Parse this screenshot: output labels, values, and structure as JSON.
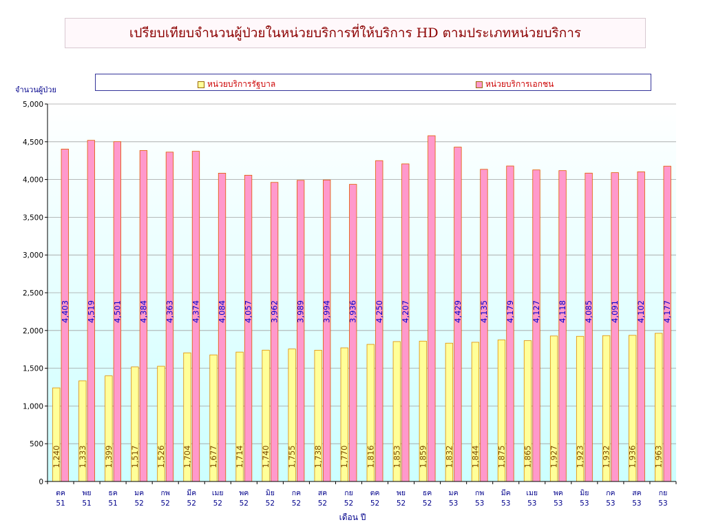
{
  "chart_data": {
    "type": "bar",
    "title": "เปรียบเทียบจำนวนผู้ป่วยในหน่วยบริการที่ให้บริการ HD ตามประเภทหน่วยบริการ",
    "ylabel": "จำนวนผู้ป่วย",
    "xlabel": "เดือน ปี",
    "ylim": [
      0,
      5000
    ],
    "yticks": [
      "0",
      "500",
      "1,000",
      "1,500",
      "2,000",
      "2,500",
      "3,000",
      "3,500",
      "4,000",
      "4,500",
      "5,000"
    ],
    "legend_position": "top",
    "grid": true,
    "categories": [
      [
        "ตค",
        "51"
      ],
      [
        "พย",
        "51"
      ],
      [
        "ธค",
        "51"
      ],
      [
        "มค",
        "52"
      ],
      [
        "กพ",
        "52"
      ],
      [
        "มีค",
        "52"
      ],
      [
        "เมย",
        "52"
      ],
      [
        "พค",
        "52"
      ],
      [
        "มิย",
        "52"
      ],
      [
        "กค",
        "52"
      ],
      [
        "สค",
        "52"
      ],
      [
        "กย",
        "52"
      ],
      [
        "ตค",
        "52"
      ],
      [
        "พย",
        "52"
      ],
      [
        "ธค",
        "52"
      ],
      [
        "มค",
        "53"
      ],
      [
        "กพ",
        "53"
      ],
      [
        "มีค",
        "53"
      ],
      [
        "เมย",
        "53"
      ],
      [
        "พค",
        "53"
      ],
      [
        "มิย",
        "53"
      ],
      [
        "กค",
        "53"
      ],
      [
        "สค",
        "53"
      ],
      [
        "กย",
        "53"
      ]
    ],
    "series": [
      {
        "name": "หน่วยบริการรัฐบาล",
        "color": "#ffff99",
        "border": "#e08a00",
        "label_color": "#7a4a00",
        "values": [
          1240,
          1333,
          1399,
          1517,
          1526,
          1704,
          1677,
          1714,
          1740,
          1755,
          1738,
          1770,
          1816,
          1853,
          1859,
          1832,
          1844,
          1875,
          1865,
          1927,
          1923,
          1932,
          1936,
          1963
        ],
        "labels": [
          "1,240",
          "1,333",
          "1,399",
          "1,517",
          "1,526",
          "1,704",
          "1,677",
          "1,714",
          "1,740",
          "1,755",
          "1,738",
          "1,770",
          "1,816",
          "1,853",
          "1,859",
          "1,832",
          "1,844",
          "1,875",
          "1,865",
          "1,927",
          "1,923",
          "1,932",
          "1,936",
          "1,963"
        ]
      },
      {
        "name": "หน่วยบริการเอกชน",
        "color": "#ff99cc",
        "border": "#e05a00",
        "label_color": "#0000cc",
        "values": [
          4403,
          4519,
          4501,
          4384,
          4363,
          4374,
          4084,
          4057,
          3962,
          3989,
          3994,
          3936,
          4250,
          4207,
          4580,
          4429,
          4135,
          4179,
          4127,
          4118,
          4085,
          4091,
          4102,
          4177
        ],
        "labels": [
          "4,403",
          "4,519",
          "4,501",
          "4,384",
          "4,363",
          "4,374",
          "4,084",
          "4,057",
          "3,962",
          "3,989",
          "3,994",
          "3,936",
          "4,250",
          "4,207",
          "",
          "4,429",
          "4,135",
          "4,179",
          "4,127",
          "4,118",
          "4,085",
          "4,091",
          "4,102",
          "4,177"
        ]
      }
    ]
  }
}
